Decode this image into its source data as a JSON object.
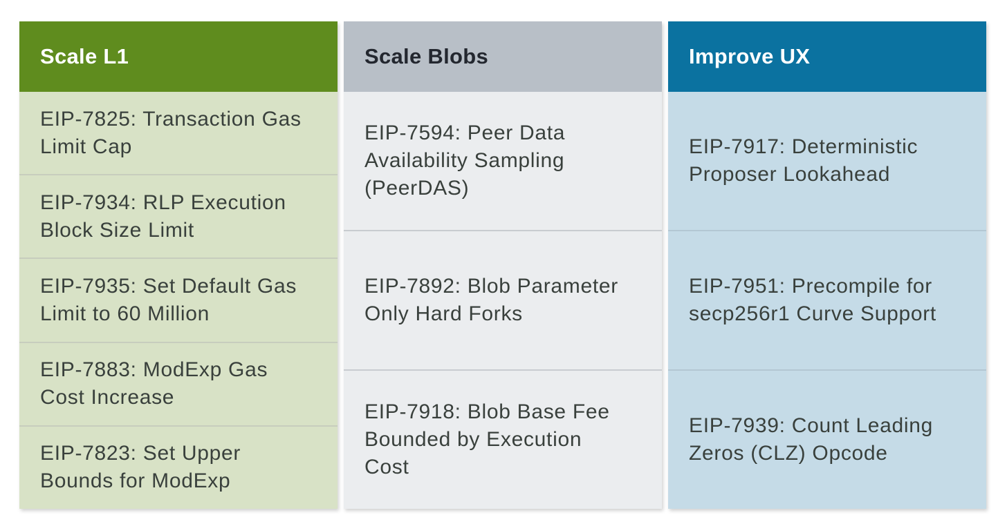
{
  "page": {
    "background": "#ffffff"
  },
  "cell_text_color": "#39403c",
  "columns": [
    {
      "title": "Scale L1",
      "colors": {
        "header_bg": "#5f8c1e",
        "header_text": "#ffffff",
        "cell_bg": "#d8e2c6",
        "divider": "#c7cdbd"
      },
      "items": [
        "EIP-7825: Transaction Gas Limit Cap",
        "EIP-7934: RLP Execution Block Size Limit",
        "EIP-7935: Set Default Gas Limit to 60 Million",
        "EIP-7883: ModExp Gas Cost Increase",
        "EIP-7823: Set Upper Bounds for ModExp"
      ]
    },
    {
      "title": "Scale Blobs",
      "colors": {
        "header_bg": "#b8bfc7",
        "header_text": "#23272f",
        "cell_bg": "#ebedef",
        "divider": "#c8ccd0"
      },
      "items": [
        "EIP-7594: Peer Data Availability Sampling (PeerDAS)",
        "EIP-7892: Blob Parameter Only Hard Forks",
        "EIP-7918: Blob Base Fee Bounded by Execution Cost"
      ]
    },
    {
      "title": "Improve UX",
      "colors": {
        "header_bg": "#0b72a0",
        "header_text": "#ffffff",
        "cell_bg": "#c5dbe7",
        "divider": "#b3c7d3"
      },
      "items": [
        "EIP-7917: Deterministic Proposer Lookahead",
        "EIP-7951: Precompile for secp256r1 Curve Support",
        "EIP-7939: Count Leading Zeros (CLZ) Opcode"
      ]
    }
  ]
}
